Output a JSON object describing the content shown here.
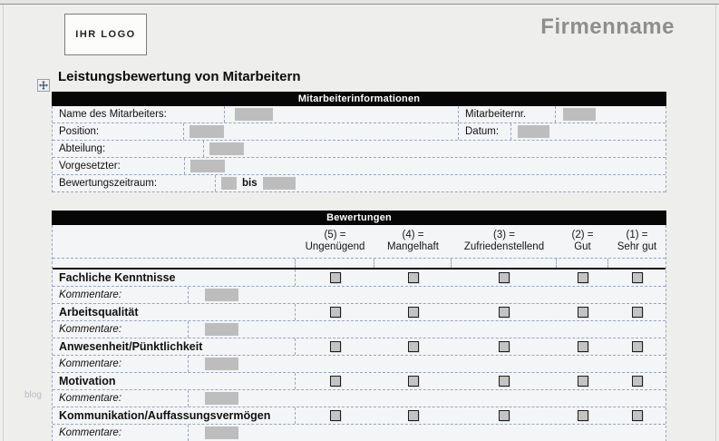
{
  "header": {
    "logo_text": "IHR LOGO",
    "company_name": "Firmenname"
  },
  "page_title": "Leistungsbewertung von Mitarbeitern",
  "watermark": "blog",
  "employee_info": {
    "section_title": "Mitarbeiterinformationen",
    "rows": [
      {
        "fields": [
          {
            "label": "Name des Mitarbeiters:",
            "value": ""
          },
          {
            "label": "Mitarbeiternr.",
            "value": ""
          }
        ]
      },
      {
        "fields": [
          {
            "label": "Position:",
            "value": ""
          },
          {
            "label": "Datum:",
            "value": ""
          }
        ]
      },
      {
        "fields": [
          {
            "label": "Abteilung:",
            "value": ""
          }
        ]
      },
      {
        "fields": [
          {
            "label": "Vorgesetzter:",
            "value": ""
          }
        ]
      },
      {
        "fields": [
          {
            "label": "Bewertungszeitraum:",
            "value": "",
            "suffix": "bis",
            "value2": ""
          }
        ]
      }
    ]
  },
  "ratings": {
    "section_title": "Bewertungen",
    "columns": [
      {
        "code": "(5) =",
        "label": "Ungenügend"
      },
      {
        "code": "(4) =",
        "label": "Mangelhaft"
      },
      {
        "code": "(3) =",
        "label": "Zufriedenstellend"
      },
      {
        "code": "(2) =",
        "label": "Gut"
      },
      {
        "code": "(1) =",
        "label": "Sehr gut"
      }
    ],
    "criteria": [
      {
        "name": "Fachliche Kenntnisse",
        "comment_label": "Kommentare:",
        "checked": null
      },
      {
        "name": "Arbeitsqualität",
        "comment_label": "Kommentare:",
        "checked": null
      },
      {
        "name": "Anwesenheit/Pünktlichkeit",
        "comment_label": "Kommentare:",
        "checked": null
      },
      {
        "name": "Motivation",
        "comment_label": "Kommentare:",
        "checked": null
      },
      {
        "name": "Kommunikation/Auffassungsvermögen",
        "comment_label": "Kommentare:",
        "checked": null
      }
    ]
  },
  "colors": {
    "section_bar": "#060606",
    "placeholder_fill": "#bdbdbd",
    "company_name": "#8e8e8e",
    "dashed_border": "#9aa6ba",
    "checkbox_fill": "#c3c3c3"
  }
}
